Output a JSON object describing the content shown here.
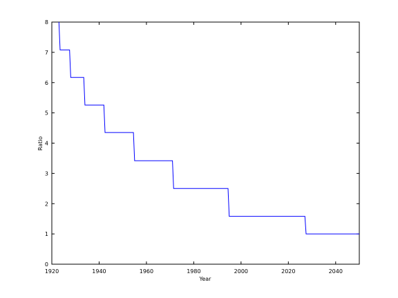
{
  "chart_data": {
    "type": "line",
    "step": true,
    "xlabel": "Year",
    "ylabel": "Ratio",
    "xlim": [
      1920,
      2050
    ],
    "ylim": [
      0,
      8
    ],
    "xticks": [
      1920,
      1940,
      1960,
      1980,
      2000,
      2020,
      2040
    ],
    "yticks": [
      0,
      1,
      2,
      3,
      4,
      5,
      6,
      7,
      8
    ],
    "grid": false,
    "series": [
      {
        "color": "#0000ff",
        "points": [
          [
            1923.0,
            8.0
          ],
          [
            1923.5,
            7.08
          ],
          [
            1927.5,
            7.08
          ],
          [
            1928.0,
            6.17
          ],
          [
            1933.5,
            6.17
          ],
          [
            1934.0,
            5.26
          ],
          [
            1942.0,
            5.26
          ],
          [
            1942.5,
            4.35
          ],
          [
            1954.5,
            4.35
          ],
          [
            1955.0,
            3.42
          ],
          [
            1971.0,
            3.42
          ],
          [
            1971.5,
            2.5
          ],
          [
            1994.5,
            2.5
          ],
          [
            1995.0,
            1.58
          ],
          [
            2027.0,
            1.58
          ],
          [
            2027.5,
            1.0
          ],
          [
            2050.0,
            1.0
          ]
        ]
      }
    ]
  }
}
